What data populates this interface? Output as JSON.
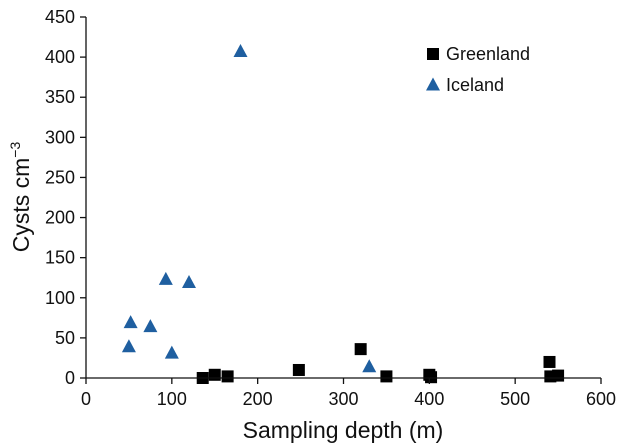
{
  "chart_data": {
    "type": "scatter",
    "xlabel": "Sampling depth (m)",
    "ylabel": "Cysts cm",
    "ylabel_superscript": "−3",
    "xlim": [
      0,
      600
    ],
    "ylim": [
      0,
      450
    ],
    "xticks": [
      0,
      100,
      200,
      300,
      400,
      500,
      600
    ],
    "yticks": [
      0,
      50,
      100,
      150,
      200,
      250,
      300,
      350,
      400,
      450
    ],
    "grid": false,
    "legend_position": "top-right",
    "series": [
      {
        "name": "Greenland",
        "marker": "square",
        "color": "#000000",
        "points": [
          {
            "x": 136,
            "y": 0
          },
          {
            "x": 150,
            "y": 4
          },
          {
            "x": 165,
            "y": 2
          },
          {
            "x": 248,
            "y": 10
          },
          {
            "x": 320,
            "y": 36
          },
          {
            "x": 350,
            "y": 2
          },
          {
            "x": 400,
            "y": 4
          },
          {
            "x": 402,
            "y": 1
          },
          {
            "x": 540,
            "y": 20
          },
          {
            "x": 541,
            "y": 2
          },
          {
            "x": 550,
            "y": 3
          }
        ]
      },
      {
        "name": "Iceland",
        "marker": "triangle",
        "color": "#1f5fa0",
        "points": [
          {
            "x": 50,
            "y": 39
          },
          {
            "x": 52,
            "y": 69
          },
          {
            "x": 75,
            "y": 64
          },
          {
            "x": 93,
            "y": 123
          },
          {
            "x": 100,
            "y": 31
          },
          {
            "x": 120,
            "y": 119
          },
          {
            "x": 180,
            "y": 407
          },
          {
            "x": 330,
            "y": 14
          }
        ]
      }
    ]
  }
}
